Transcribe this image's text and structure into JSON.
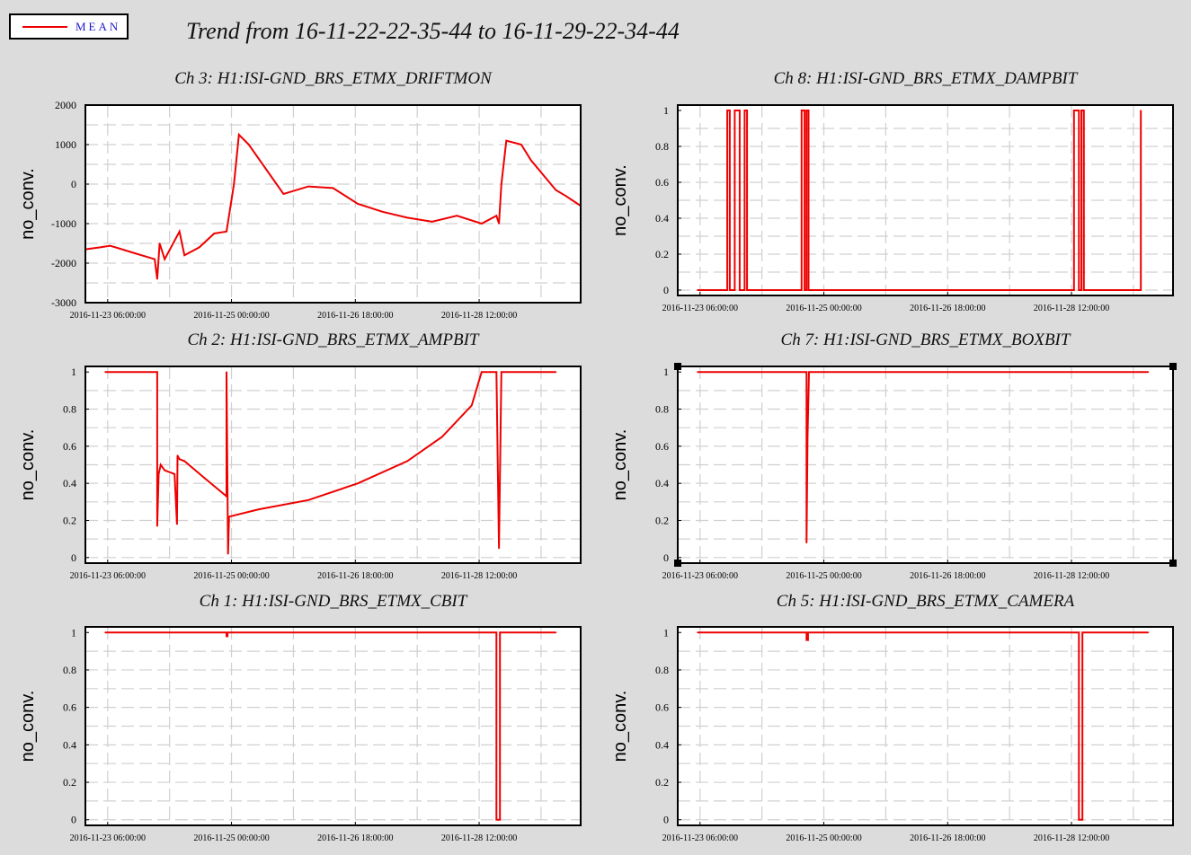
{
  "legend": {
    "label": "MEAN",
    "color": "#ee0000"
  },
  "title": "Trend from 16-11-22-22-35-44 to 16-11-29-22-34-44",
  "x_ticks": [
    "2016-11-23 06:00:00",
    "2016-11-25 00:00:00",
    "2016-11-26 18:00:00",
    "2016-11-28 12:00:00"
  ],
  "chart_data": [
    {
      "type": "line",
      "title": "Ch 3: H1:ISI-GND_BRS_ETMX_DRIFTMON",
      "ylabel": "no_conv.",
      "ylim": [
        -3000,
        2000
      ],
      "yticks": [
        -3000,
        -2000,
        -1000,
        0,
        1000,
        2000
      ],
      "x": [
        0,
        0.03,
        0.05,
        0.1,
        0.14,
        0.145,
        0.15,
        0.16,
        0.19,
        0.2,
        0.23,
        0.26,
        0.285,
        0.3,
        0.31,
        0.33,
        0.4,
        0.45,
        0.5,
        0.55,
        0.6,
        0.65,
        0.7,
        0.75,
        0.8,
        0.83,
        0.835,
        0.84,
        0.85,
        0.88,
        0.9,
        0.95,
        0.97,
        1.0
      ],
      "series": [
        {
          "values": [
            -1650,
            -1600,
            -1560,
            -1750,
            -1900,
            -2400,
            -1500,
            -1900,
            -1200,
            -1800,
            -1600,
            -1250,
            -1200,
            0,
            1250,
            1000,
            -250,
            -60,
            -100,
            -500,
            -700,
            -850,
            -950,
            -800,
            -1000,
            -800,
            -1000,
            0,
            1100,
            1000,
            600,
            -150,
            -300,
            -550
          ]
        }
      ]
    },
    {
      "type": "line",
      "title": "Ch 8: H1:ISI-GND_BRS_ETMX_DAMPBIT",
      "ylabel": "no_conv.",
      "ylim": [
        0,
        1
      ],
      "yticks": [
        0,
        0.2,
        0.4,
        0.6,
        0.8,
        1
      ],
      "x": [
        0.04,
        0.1,
        0.1,
        0.105,
        0.105,
        0.115,
        0.115,
        0.125,
        0.125,
        0.135,
        0.135,
        0.14,
        0.14,
        0.25,
        0.25,
        0.256,
        0.256,
        0.26,
        0.26,
        0.264,
        0.264,
        0.27,
        0.27,
        0.8,
        0.8,
        0.81,
        0.81,
        0.815,
        0.815,
        0.82,
        0.82,
        0.92,
        0.935,
        0.935
      ],
      "series": [
        {
          "values": [
            0,
            0,
            1,
            1,
            0,
            0,
            1,
            1,
            0,
            0,
            1,
            1,
            0,
            0,
            1,
            1,
            0,
            0,
            1,
            1,
            0,
            0,
            0,
            0,
            1,
            1,
            0,
            0,
            1,
            1,
            0,
            0,
            0,
            1
          ]
        }
      ]
    },
    {
      "type": "line",
      "title": "Ch 2: H1:ISI-GND_BRS_ETMX_AMPBIT",
      "ylabel": "no_conv.",
      "ylim": [
        0,
        1
      ],
      "yticks": [
        0,
        0.2,
        0.4,
        0.6,
        0.8,
        1
      ],
      "x": [
        0.04,
        0.145,
        0.145,
        0.148,
        0.152,
        0.16,
        0.18,
        0.185,
        0.186,
        0.19,
        0.2,
        0.24,
        0.285,
        0.285,
        0.288,
        0.29,
        0.35,
        0.45,
        0.55,
        0.65,
        0.72,
        0.78,
        0.8,
        0.83,
        0.835,
        0.84,
        0.845,
        0.85,
        0.95
      ],
      "series": [
        {
          "values": [
            1,
            1,
            0.17,
            0.45,
            0.5,
            0.47,
            0.45,
            0.18,
            0.55,
            0.53,
            0.52,
            0.43,
            0.33,
            1,
            0.02,
            0.22,
            0.26,
            0.31,
            0.4,
            0.52,
            0.65,
            0.82,
            1,
            1,
            0.05,
            1,
            1,
            1,
            1
          ]
        }
      ]
    },
    {
      "type": "line",
      "title": "Ch 7: H1:ISI-GND_BRS_ETMX_BOXBIT",
      "ylabel": "no_conv.",
      "ylim": [
        0,
        1
      ],
      "yticks": [
        0,
        0.2,
        0.4,
        0.6,
        0.8,
        1
      ],
      "x": [
        0.04,
        0.26,
        0.26,
        0.262,
        0.265,
        0.268,
        0.268,
        0.95
      ],
      "series": [
        {
          "values": [
            1,
            1,
            0.08,
            0.65,
            1,
            1,
            1,
            1
          ]
        }
      ]
    },
    {
      "type": "line",
      "title": "Ch 1: H1:ISI-GND_BRS_ETMX_CBIT",
      "ylabel": "no_conv.",
      "ylim": [
        0,
        1
      ],
      "yticks": [
        0,
        0.2,
        0.4,
        0.6,
        0.8,
        1
      ],
      "x": [
        0.04,
        0.285,
        0.285,
        0.287,
        0.287,
        0.83,
        0.83,
        0.837,
        0.837,
        0.95
      ],
      "series": [
        {
          "values": [
            1,
            1,
            0.98,
            0.98,
            1,
            1,
            0,
            0,
            1,
            1
          ]
        }
      ]
    },
    {
      "type": "line",
      "title": "Ch 5: H1:ISI-GND_BRS_ETMX_CAMERA",
      "ylabel": "no_conv.",
      "ylim": [
        0,
        1
      ],
      "yticks": [
        0,
        0.2,
        0.4,
        0.6,
        0.8,
        1
      ],
      "x": [
        0.04,
        0.26,
        0.26,
        0.263,
        0.263,
        0.81,
        0.81,
        0.817,
        0.817,
        0.95
      ],
      "series": [
        {
          "values": [
            1,
            1,
            0.96,
            0.96,
            1,
            1,
            0,
            0,
            1,
            1
          ]
        }
      ]
    }
  ]
}
